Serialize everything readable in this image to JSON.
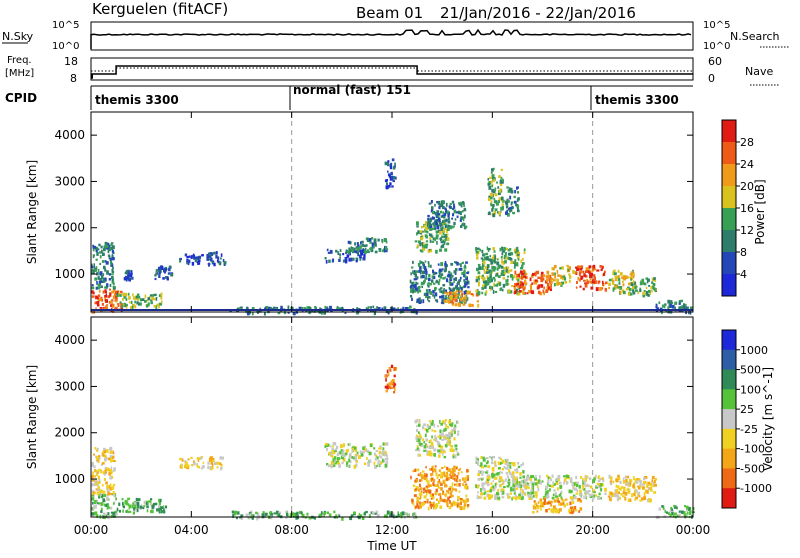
{
  "header": {
    "station": "Kerguelen (fitACF)",
    "beam": "Beam 01",
    "date_range": "21/Jan/2016 - 22/Jan/2016"
  },
  "nsky_panel": {
    "left_label": "N.Sky",
    "right_label": "N.Search",
    "left_ticks": [
      "10^5",
      "10^0"
    ],
    "right_ticks": [
      "10^5",
      "10^0"
    ]
  },
  "freq_panel": {
    "left_label_1": "Freq.",
    "left_label_2": "[MHz]",
    "right_label": "Nave",
    "left_ticks": [
      "18",
      "8"
    ],
    "right_ticks": [
      "60",
      "0"
    ]
  },
  "cpid_panel": {
    "label": "CPID",
    "segments": [
      {
        "start_hour": 0,
        "text": "themis 3300"
      },
      {
        "start_hour": 8,
        "text": "normal (fast) 151"
      },
      {
        "start_hour": 20,
        "text": "themis 3300"
      }
    ]
  },
  "colors": {
    "power": [
      "#1d28d9",
      "#2447b7",
      "#2e7d6b",
      "#38a055",
      "#d9c21e",
      "#f09a1a",
      "#ef5b17",
      "#e01b14"
    ],
    "velocity": [
      "#1d28d9",
      "#2d5ea6",
      "#2f8a57",
      "#55c23a",
      "#c8c8c8",
      "#f0d020",
      "#f3a718",
      "#ee6a14",
      "#e01b14"
    ],
    "ground_scatter": "#c4c4c4",
    "dashed_line": "#9a9a9a"
  },
  "chart_data": [
    {
      "type": "heatmap",
      "name": "power",
      "ylabel": "Slant Range [km]",
      "ylim": [
        180,
        4500
      ],
      "y_ticks": [
        1000,
        2000,
        3000,
        4000
      ],
      "x_ticks_hours": [
        0,
        4,
        8,
        12,
        16,
        20,
        24
      ],
      "colorbar_label": "Power [dB]",
      "colorbar_ticks": [
        "4",
        "8",
        "12",
        "16",
        "20",
        "24",
        "28"
      ],
      "dashed_hours": [
        8,
        20
      ],
      "regions": [
        {
          "h0": 0.0,
          "h1": 1.2,
          "r0": 200,
          "r1": 700,
          "level": 6
        },
        {
          "h0": 0.0,
          "h1": 0.9,
          "r0": 700,
          "r1": 1700,
          "level": 2
        },
        {
          "h0": 1.0,
          "h1": 2.8,
          "r0": 300,
          "r1": 600,
          "level": 3
        },
        {
          "h0": 1.3,
          "h1": 1.6,
          "r0": 900,
          "r1": 1100,
          "level": 1
        },
        {
          "h0": 2.5,
          "h1": 3.2,
          "r0": 900,
          "r1": 1200,
          "level": 1
        },
        {
          "h0": 3.5,
          "h1": 4.4,
          "r0": 1250,
          "r1": 1450,
          "level": 1
        },
        {
          "h0": 4.6,
          "h1": 5.3,
          "r0": 1200,
          "r1": 1500,
          "level": 1
        },
        {
          "h0": 9.3,
          "h1": 10.9,
          "r0": 1300,
          "r1": 1550,
          "level": 1
        },
        {
          "h0": 10.2,
          "h1": 11.8,
          "r0": 1500,
          "r1": 1800,
          "level": 2
        },
        {
          "h0": 11.7,
          "h1": 12.1,
          "r0": 2900,
          "r1": 3500,
          "level": 1
        },
        {
          "h0": 12.9,
          "h1": 14.2,
          "r0": 1500,
          "r1": 2200,
          "level": 3
        },
        {
          "h0": 13.4,
          "h1": 14.9,
          "r0": 2000,
          "r1": 2600,
          "level": 2
        },
        {
          "h0": 12.7,
          "h1": 15.0,
          "r0": 400,
          "r1": 1300,
          "level": 2
        },
        {
          "h0": 14.0,
          "h1": 15.4,
          "r0": 350,
          "r1": 650,
          "level": 5
        },
        {
          "h0": 15.8,
          "h1": 16.4,
          "r0": 2300,
          "r1": 3300,
          "level": 3
        },
        {
          "h0": 16.5,
          "h1": 17.0,
          "r0": 2300,
          "r1": 2900,
          "level": 2
        },
        {
          "h0": 15.3,
          "h1": 17.3,
          "r0": 600,
          "r1": 1600,
          "level": 3
        },
        {
          "h0": 16.8,
          "h1": 18.3,
          "r0": 600,
          "r1": 1100,
          "level": 6
        },
        {
          "h0": 18.3,
          "h1": 19.2,
          "r0": 800,
          "r1": 1200,
          "level": 4
        },
        {
          "h0": 19.3,
          "h1": 20.5,
          "r0": 700,
          "r1": 1200,
          "level": 6
        },
        {
          "h0": 20.6,
          "h1": 21.6,
          "r0": 600,
          "r1": 1100,
          "level": 4
        },
        {
          "h0": 21.5,
          "h1": 22.5,
          "r0": 550,
          "r1": 950,
          "level": 3
        },
        {
          "h0": 22.5,
          "h1": 24.0,
          "r0": 200,
          "r1": 450,
          "level": 2
        },
        {
          "h0": 5.5,
          "h1": 13.0,
          "r0": 180,
          "r1": 320,
          "level": 2
        }
      ]
    },
    {
      "type": "heatmap",
      "name": "velocity",
      "ylabel": "Slant Range [km]",
      "xlabel": "Time UT",
      "ylim": [
        180,
        4500
      ],
      "y_ticks": [
        1000,
        2000,
        3000,
        4000
      ],
      "x_ticks_hours": [
        0,
        4,
        8,
        12,
        16,
        20,
        24
      ],
      "x_tick_labels": [
        "00:00",
        "04:00",
        "08:00",
        "12:00",
        "16:00",
        "20:00",
        "00:00"
      ],
      "colorbar_label": "Velocity [m s^-1]",
      "colorbar_ticks": [
        "1000",
        "500",
        "100",
        "25",
        "-25",
        "-100",
        "-500",
        "-1000"
      ],
      "dashed_hours": [
        8,
        20
      ],
      "regions": [
        {
          "h0": 0.0,
          "h1": 1.0,
          "r0": 200,
          "r1": 700,
          "level": 3
        },
        {
          "h0": 0.0,
          "h1": 0.9,
          "r0": 700,
          "r1": 1700,
          "level": 5
        },
        {
          "h0": 1.0,
          "h1": 3.0,
          "r0": 300,
          "r1": 600,
          "level": 3
        },
        {
          "h0": 3.5,
          "h1": 5.3,
          "r0": 1250,
          "r1": 1500,
          "level": 5
        },
        {
          "h0": 9.3,
          "h1": 11.8,
          "r0": 1300,
          "r1": 1800,
          "level": 4
        },
        {
          "h0": 11.7,
          "h1": 12.1,
          "r0": 2900,
          "r1": 3500,
          "level": 7
        },
        {
          "h0": 12.9,
          "h1": 14.6,
          "r0": 1500,
          "r1": 2300,
          "level": 4
        },
        {
          "h0": 12.7,
          "h1": 15.0,
          "r0": 400,
          "r1": 1300,
          "level": 6
        },
        {
          "h0": 15.3,
          "h1": 17.2,
          "r0": 600,
          "r1": 1500,
          "level": 4
        },
        {
          "h0": 16.8,
          "h1": 20.5,
          "r0": 600,
          "r1": 1100,
          "level": 4
        },
        {
          "h0": 17.5,
          "h1": 19.5,
          "r0": 300,
          "r1": 600,
          "level": 6
        },
        {
          "h0": 20.6,
          "h1": 22.5,
          "r0": 550,
          "r1": 1100,
          "level": 5
        },
        {
          "h0": 22.5,
          "h1": 24.0,
          "r0": 200,
          "r1": 450,
          "level": 3
        },
        {
          "h0": 5.5,
          "h1": 13.0,
          "r0": 180,
          "r1": 320,
          "level": 3
        }
      ]
    }
  ]
}
